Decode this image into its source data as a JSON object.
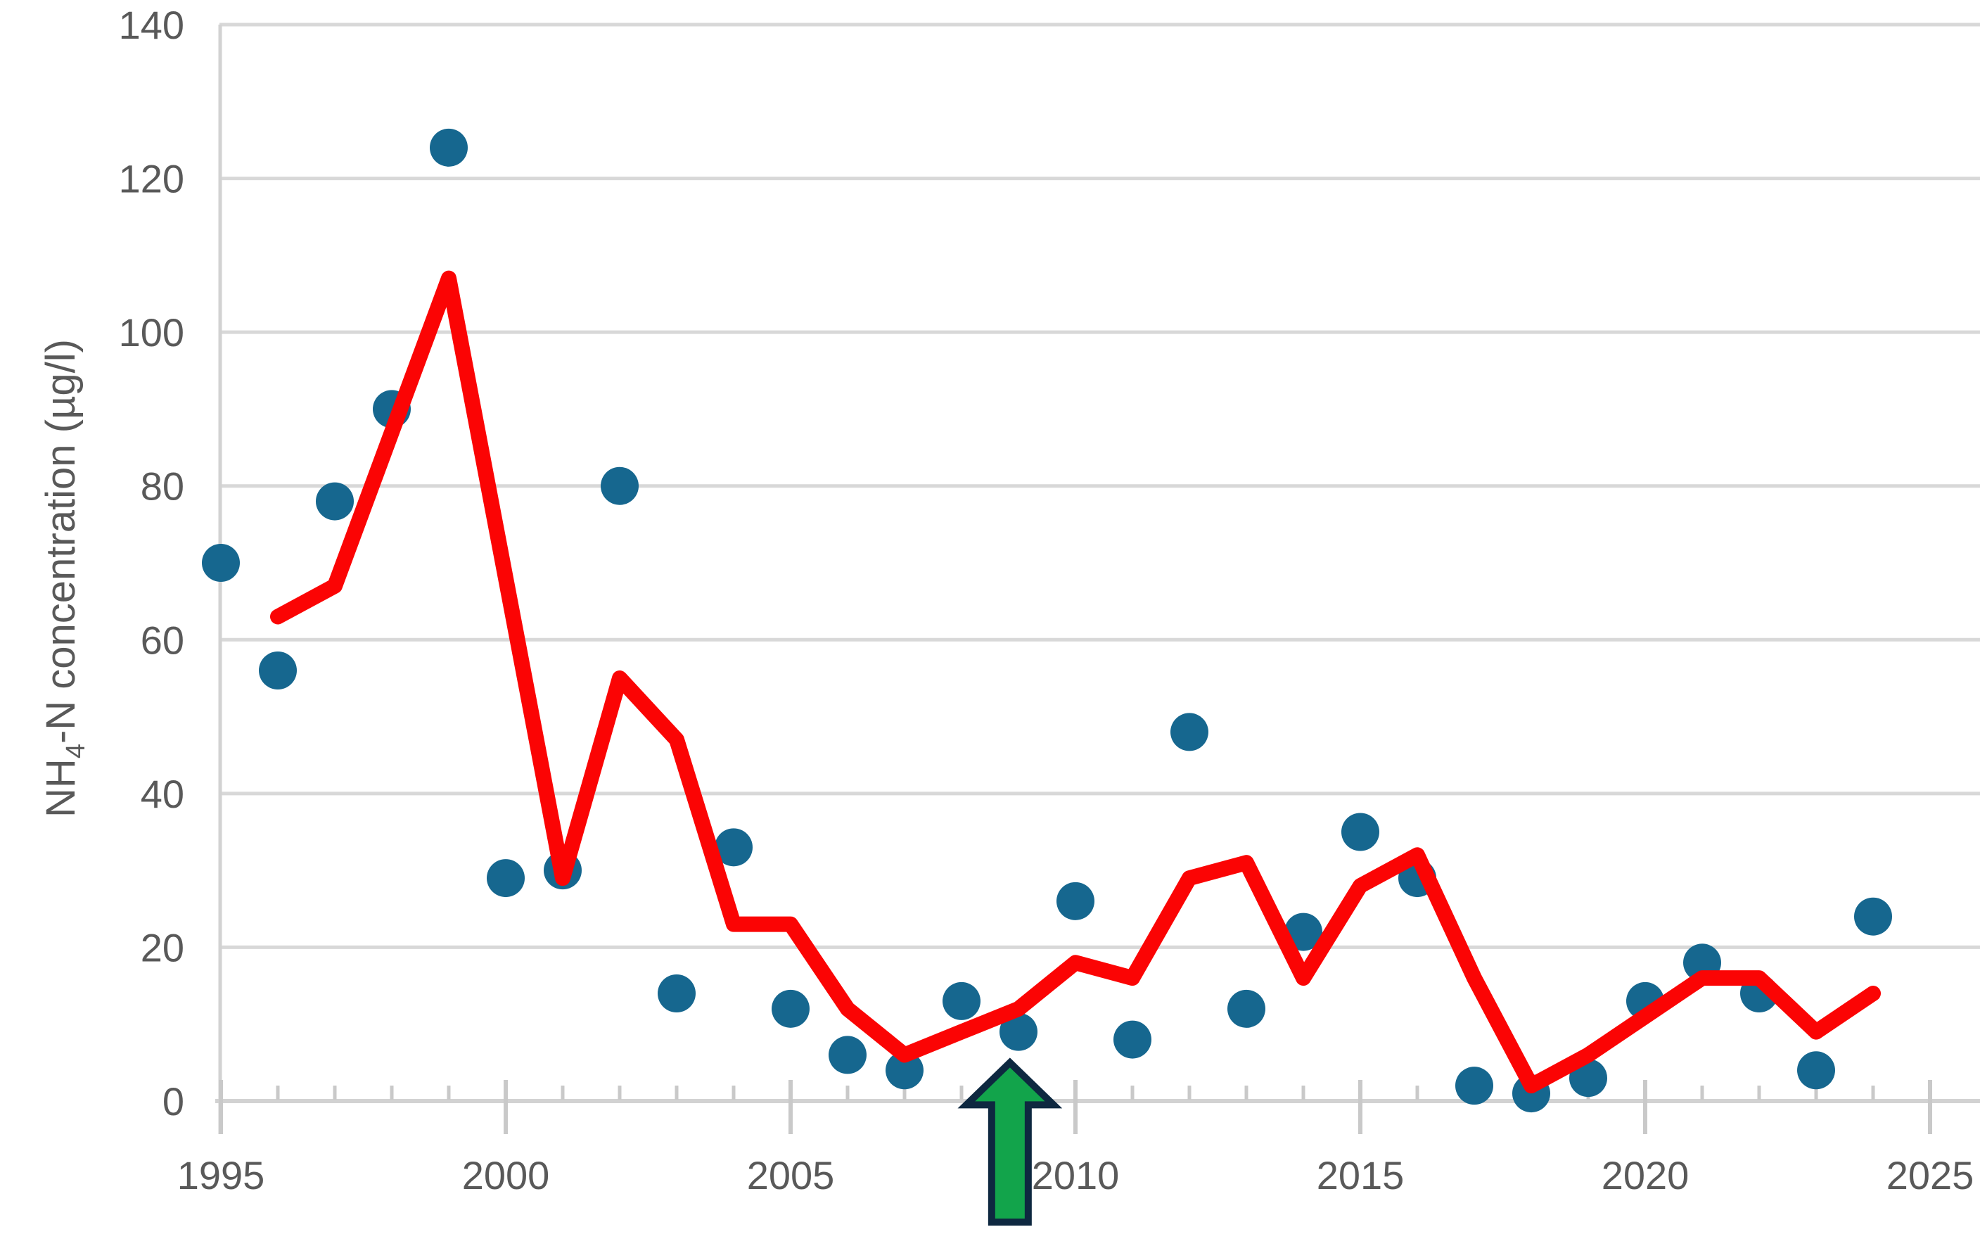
{
  "chart_data": {
    "type": "scatter",
    "title": "",
    "ylabel": "NH4-N concentration (µg/l)",
    "ylabel_parts": {
      "prefix": "NH",
      "sub": "4",
      "suffix": "-N concentration (µg/l)"
    },
    "xlabel": "",
    "xlim": [
      1995,
      2025.3
    ],
    "ylim": [
      0,
      140
    ],
    "y_ticks": [
      0,
      20,
      40,
      60,
      80,
      100,
      120,
      140
    ],
    "x_major_ticks": [
      1995,
      2000,
      2005,
      2010,
      2015,
      2020,
      2025
    ],
    "x_minor_tick_step": 1,
    "grid": "horizontal",
    "legend": "none",
    "series": [
      {
        "name": "annual-observations",
        "type": "scatter",
        "color": "#16678F",
        "marker_radius_px": 27,
        "x": [
          1995,
          1996,
          1997,
          1998,
          1999,
          2000,
          2001,
          2002,
          2003,
          2004,
          2005,
          2006,
          2007,
          2008,
          2009,
          2010,
          2011,
          2012,
          2013,
          2014,
          2015,
          2016,
          2017,
          2018,
          2019,
          2020,
          2021,
          2022,
          2023,
          2024
        ],
        "values": [
          70,
          56,
          78,
          90,
          124,
          29,
          30,
          80,
          14,
          33,
          12,
          6,
          4,
          13,
          9,
          26,
          8,
          48,
          12,
          22,
          35,
          29,
          2,
          1,
          3,
          13,
          18,
          14,
          4,
          24
        ]
      },
      {
        "name": "trend-line",
        "type": "line",
        "color": "#FB0404",
        "stroke_width_px": 22,
        "x": [
          1996,
          1997,
          1998,
          1999,
          2000,
          2001,
          2002,
          2003,
          2004,
          2005,
          2006,
          2007,
          2008,
          2009,
          2010,
          2011,
          2012,
          2013,
          2014,
          2015,
          2016,
          2017,
          2018,
          2019,
          2020,
          2021,
          2022,
          2023,
          2024
        ],
        "values": [
          63,
          67,
          87,
          107,
          68,
          29,
          55,
          47,
          23,
          23,
          12,
          6,
          9,
          12,
          18,
          16,
          29,
          31,
          16,
          28,
          32,
          16,
          2,
          6,
          11,
          16,
          16,
          9,
          14
        ]
      }
    ],
    "annotations": [
      {
        "type": "up-arrow",
        "x": 2008.85,
        "tip_value": 5,
        "fill": "#12A44B",
        "outline": "#0E2840"
      }
    ]
  },
  "colors": {
    "background": "#ffffff",
    "gridline": "#D8D8D8",
    "axis_line": "#D2D2D2",
    "tick": "#C9C9C9",
    "tick_label": "#595959",
    "scatter": "#16678F",
    "line": "#FB0404",
    "arrow_fill": "#12A44B",
    "arrow_outline": "#0E2840"
  },
  "axes_text": {
    "y_tick_labels": [
      "0",
      "20",
      "40",
      "60",
      "80",
      "100",
      "120",
      "140"
    ],
    "x_tick_labels": [
      "1995",
      "2000",
      "2005",
      "2010",
      "2015",
      "2020",
      "2025"
    ]
  }
}
